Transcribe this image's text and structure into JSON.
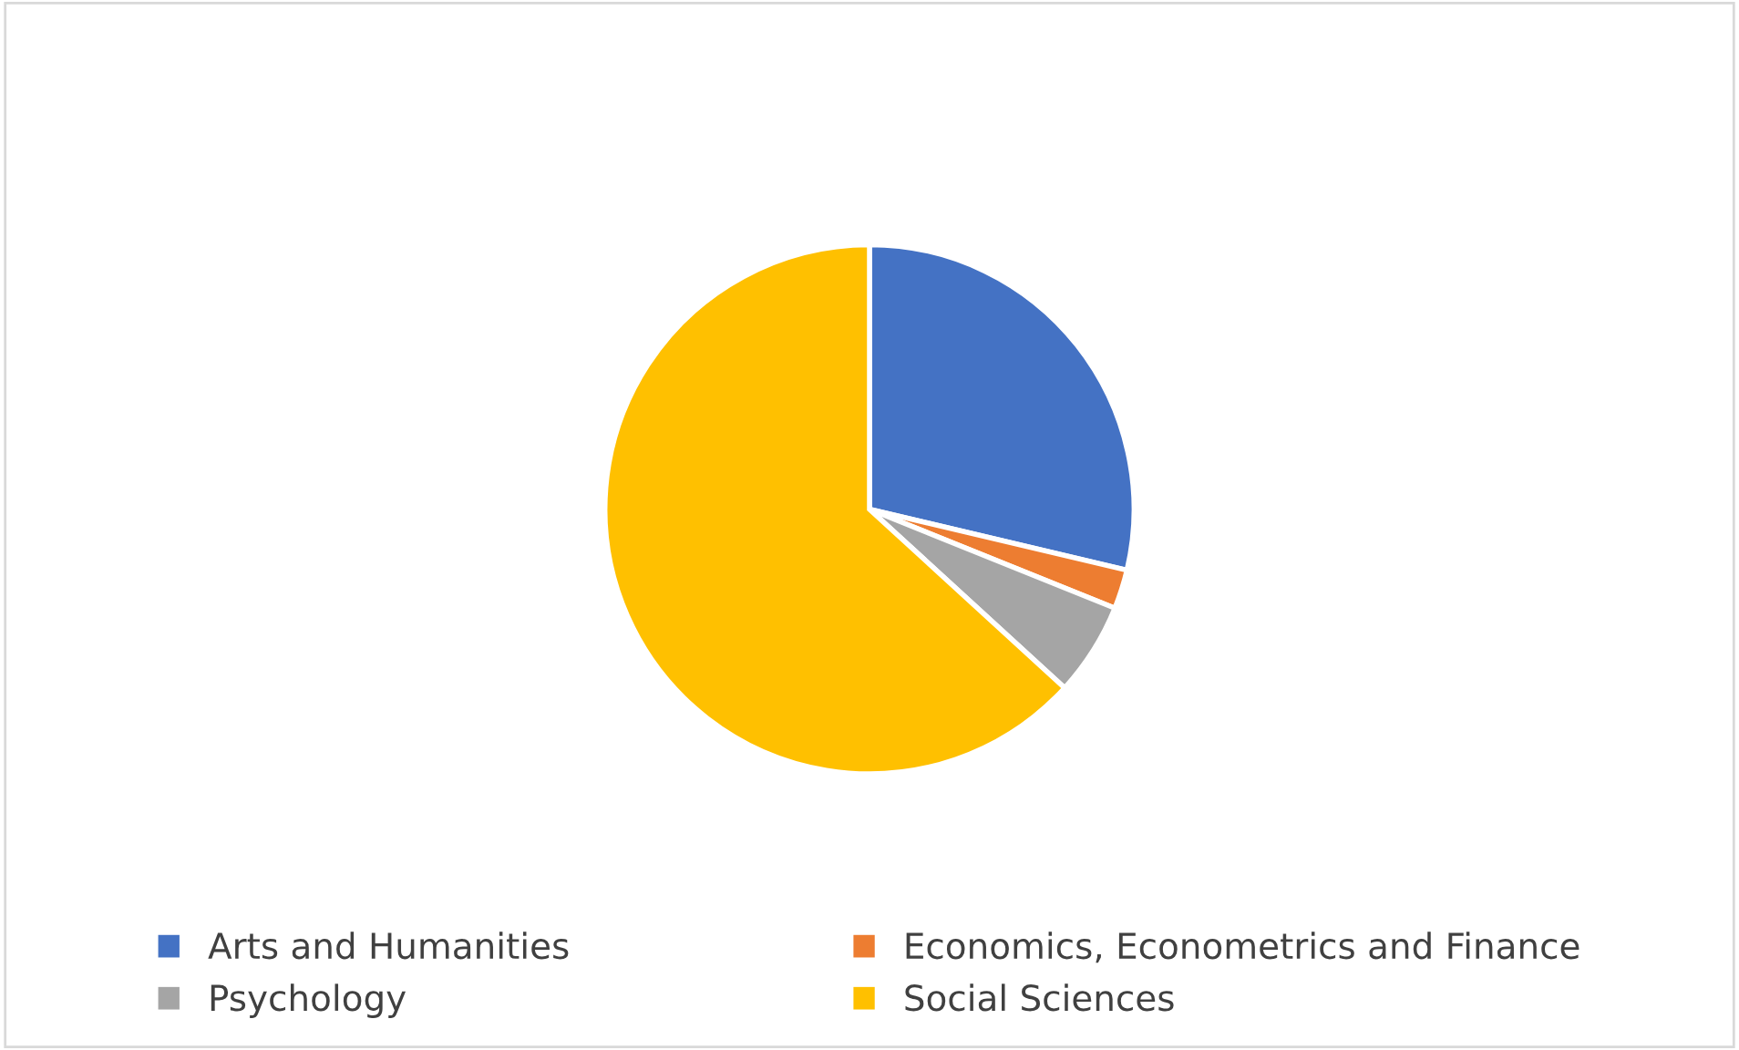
{
  "chart_data": {
    "type": "pie",
    "categories": [
      "Arts and Humanities",
      "Economics, Econometrics and Finance",
      "Psychology",
      "Social Sciences"
    ],
    "values": [
      28.7,
      2.4,
      5.7,
      63.2
    ],
    "colors": [
      "#4472c4",
      "#ed7d31",
      "#a5a5a5",
      "#ffc000"
    ],
    "legend": "bottom"
  }
}
